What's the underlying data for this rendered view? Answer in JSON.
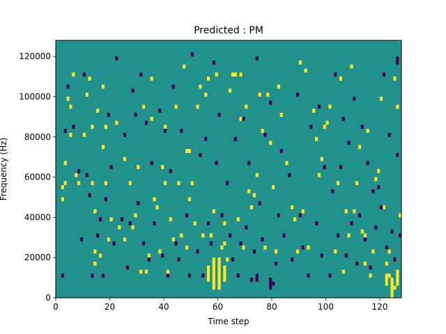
{
  "chart_data": {
    "type": "heatmap",
    "title": "Predicted : PM",
    "xlabel": "Time step",
    "ylabel": "Frequency (Hz)",
    "xlim": [
      0,
      128
    ],
    "ylim": [
      0,
      128000
    ],
    "x_ticks": [
      0,
      20,
      40,
      60,
      80,
      100,
      120
    ],
    "y_ticks": [
      0,
      20000,
      40000,
      60000,
      80000,
      100000,
      120000
    ],
    "n_time_steps": 128,
    "n_freq_bins": 64,
    "bin_height_hz": 2000,
    "background_value": 0,
    "value_levels": {
      "low": -1,
      "mid": 0,
      "high": 1
    },
    "colormap": [
      "#440154",
      "#21918c",
      "#fde725"
    ],
    "cells": [
      [
        2,
        48000,
        50000,
        1
      ],
      [
        2,
        54000,
        56000,
        1
      ],
      [
        3,
        56000,
        58000,
        1
      ],
      [
        3,
        66000,
        68000,
        1
      ],
      [
        4,
        98000,
        100000,
        1
      ],
      [
        5,
        80000,
        82000,
        1
      ],
      [
        5,
        94000,
        96000,
        1
      ],
      [
        6,
        110000,
        112000,
        1
      ],
      [
        7,
        60000,
        62000,
        1
      ],
      [
        8,
        56000,
        58000,
        1
      ],
      [
        10,
        80000,
        82000,
        1
      ],
      [
        11,
        100000,
        102000,
        1
      ],
      [
        12,
        108000,
        110000,
        1
      ],
      [
        13,
        56000,
        58000,
        1
      ],
      [
        13,
        84000,
        86000,
        1
      ],
      [
        14,
        16000,
        18000,
        1
      ],
      [
        14,
        22000,
        24000,
        1
      ],
      [
        14,
        42000,
        44000,
        1
      ],
      [
        15,
        92000,
        94000,
        1
      ],
      [
        16,
        20000,
        22000,
        1
      ],
      [
        17,
        74000,
        76000,
        1
      ],
      [
        17,
        104000,
        106000,
        1
      ],
      [
        18,
        56000,
        58000,
        1
      ],
      [
        18,
        84000,
        86000,
        1
      ],
      [
        19,
        28000,
        30000,
        1
      ],
      [
        20,
        38000,
        40000,
        1
      ],
      [
        22,
        86000,
        88000,
        1
      ],
      [
        23,
        34000,
        36000,
        1
      ],
      [
        25,
        28000,
        30000,
        1
      ],
      [
        25,
        68000,
        70000,
        1
      ],
      [
        27,
        56000,
        58000,
        1
      ],
      [
        28,
        34000,
        36000,
        1
      ],
      [
        29,
        40000,
        42000,
        1
      ],
      [
        30,
        64000,
        66000,
        1
      ],
      [
        31,
        12000,
        14000,
        1
      ],
      [
        32,
        94000,
        96000,
        1
      ],
      [
        33,
        12000,
        14000,
        1
      ],
      [
        34,
        20000,
        22000,
        1
      ],
      [
        35,
        88000,
        90000,
        1
      ],
      [
        35,
        108000,
        110000,
        1
      ],
      [
        36,
        48000,
        50000,
        1
      ],
      [
        37,
        44000,
        46000,
        1
      ],
      [
        38,
        22000,
        24000,
        1
      ],
      [
        39,
        64000,
        66000,
        1
      ],
      [
        40,
        56000,
        58000,
        1
      ],
      [
        40,
        84000,
        86000,
        1
      ],
      [
        41,
        12000,
        14000,
        1
      ],
      [
        42,
        38000,
        40000,
        1
      ],
      [
        43,
        28000,
        30000,
        1
      ],
      [
        44,
        94000,
        96000,
        1
      ],
      [
        45,
        56000,
        58000,
        1
      ],
      [
        46,
        30000,
        32000,
        1
      ],
      [
        47,
        114000,
        116000,
        1
      ],
      [
        48,
        24000,
        26000,
        1
      ],
      [
        48,
        72000,
        74000,
        1
      ],
      [
        49,
        48000,
        50000,
        1
      ],
      [
        49,
        72000,
        74000,
        1
      ],
      [
        50,
        56000,
        58000,
        1
      ],
      [
        51,
        36000,
        38000,
        1
      ],
      [
        52,
        94000,
        96000,
        1
      ],
      [
        53,
        104000,
        106000,
        1
      ],
      [
        54,
        30000,
        32000,
        1
      ],
      [
        55,
        100000,
        102000,
        1
      ],
      [
        56,
        108000,
        110000,
        1
      ],
      [
        57,
        30000,
        32000,
        1
      ],
      [
        58,
        42000,
        44000,
        1
      ],
      [
        59,
        110000,
        112000,
        1
      ],
      [
        60,
        12000,
        14000,
        1
      ],
      [
        60,
        18000,
        20000,
        1
      ],
      [
        61,
        24000,
        26000,
        1
      ],
      [
        62,
        26000,
        28000,
        1
      ],
      [
        62,
        36000,
        38000,
        1
      ],
      [
        63,
        18000,
        20000,
        1
      ],
      [
        64,
        102000,
        104000,
        1
      ],
      [
        65,
        110000,
        112000,
        1
      ],
      [
        66,
        110000,
        112000,
        1
      ],
      [
        67,
        38000,
        40000,
        1
      ],
      [
        68,
        88000,
        90000,
        1
      ],
      [
        68,
        110000,
        112000,
        1
      ],
      [
        69,
        24000,
        26000,
        1
      ],
      [
        70,
        94000,
        96000,
        1
      ],
      [
        71,
        52000,
        54000,
        1
      ],
      [
        72,
        44000,
        46000,
        1
      ],
      [
        73,
        50000,
        52000,
        1
      ],
      [
        74,
        60000,
        62000,
        1
      ],
      [
        75,
        100000,
        102000,
        1
      ],
      [
        76,
        82000,
        84000,
        1
      ],
      [
        77,
        24000,
        26000,
        1
      ],
      [
        78,
        100000,
        102000,
        1
      ],
      [
        79,
        76000,
        78000,
        1
      ],
      [
        80,
        54000,
        56000,
        1
      ],
      [
        81,
        22000,
        24000,
        1
      ],
      [
        82,
        104000,
        106000,
        1
      ],
      [
        83,
        90000,
        92000,
        1
      ],
      [
        85,
        66000,
        68000,
        1
      ],
      [
        87,
        44000,
        46000,
        1
      ],
      [
        88,
        38000,
        40000,
        1
      ],
      [
        89,
        22000,
        24000,
        1
      ],
      [
        90,
        116000,
        118000,
        1
      ],
      [
        91,
        42000,
        44000,
        1
      ],
      [
        92,
        112000,
        114000,
        1
      ],
      [
        93,
        24000,
        26000,
        1
      ],
      [
        95,
        92000,
        94000,
        1
      ],
      [
        96,
        78000,
        80000,
        1
      ],
      [
        97,
        60000,
        62000,
        1
      ],
      [
        98,
        68000,
        70000,
        1
      ],
      [
        99,
        84000,
        86000,
        1
      ],
      [
        100,
        86000,
        88000,
        1
      ],
      [
        101,
        94000,
        96000,
        1
      ],
      [
        103,
        22000,
        24000,
        1
      ],
      [
        104,
        56000,
        58000,
        1
      ],
      [
        105,
        108000,
        110000,
        1
      ],
      [
        106,
        12000,
        14000,
        1
      ],
      [
        107,
        42000,
        44000,
        1
      ],
      [
        108,
        30000,
        32000,
        1
      ],
      [
        109,
        114000,
        116000,
        1
      ],
      [
        110,
        42000,
        44000,
        1
      ],
      [
        111,
        56000,
        58000,
        1
      ],
      [
        112,
        74000,
        76000,
        1
      ],
      [
        113,
        32000,
        34000,
        1
      ],
      [
        114,
        16000,
        18000,
        1
      ],
      [
        114,
        30000,
        32000,
        1
      ],
      [
        115,
        82000,
        84000,
        1
      ],
      [
        116,
        10000,
        12000,
        1
      ],
      [
        117,
        22000,
        24000,
        1
      ],
      [
        118,
        58000,
        60000,
        1
      ],
      [
        119,
        62000,
        64000,
        1
      ],
      [
        120,
        98000,
        100000,
        1
      ],
      [
        121,
        44000,
        46000,
        1
      ],
      [
        122,
        16000,
        18000,
        1
      ],
      [
        123,
        10000,
        12000,
        1
      ],
      [
        123,
        22000,
        24000,
        1
      ],
      [
        125,
        4000,
        6000,
        1
      ],
      [
        125,
        108000,
        110000,
        1
      ],
      [
        126,
        94000,
        96000,
        1
      ],
      [
        127,
        40000,
        42000,
        1
      ],
      [
        56,
        8000,
        16000,
        1
      ],
      [
        58,
        4000,
        20000,
        1
      ],
      [
        60,
        4000,
        20000,
        1
      ],
      [
        62,
        8000,
        16000,
        1
      ],
      [
        122,
        6000,
        12000,
        1
      ],
      [
        124,
        0,
        10000,
        1
      ],
      [
        126,
        6000,
        14000,
        1
      ],
      [
        2,
        10000,
        12000,
        -1
      ],
      [
        3,
        82000,
        84000,
        -1
      ],
      [
        4,
        104000,
        106000,
        -1
      ],
      [
        6,
        84000,
        86000,
        -1
      ],
      [
        8,
        62000,
        64000,
        -1
      ],
      [
        9,
        28000,
        30000,
        -1
      ],
      [
        10,
        110000,
        112000,
        -1
      ],
      [
        11,
        60000,
        62000,
        -1
      ],
      [
        12,
        50000,
        52000,
        -1
      ],
      [
        13,
        10000,
        12000,
        -1
      ],
      [
        15,
        30000,
        32000,
        -1
      ],
      [
        16,
        38000,
        40000,
        -1
      ],
      [
        17,
        10000,
        12000,
        -1
      ],
      [
        18,
        48000,
        50000,
        -1
      ],
      [
        19,
        90000,
        92000,
        -1
      ],
      [
        20,
        64000,
        66000,
        -1
      ],
      [
        21,
        26000,
        28000,
        -1
      ],
      [
        22,
        118000,
        120000,
        -1
      ],
      [
        24,
        38000,
        40000,
        -1
      ],
      [
        25,
        80000,
        82000,
        -1
      ],
      [
        26,
        14000,
        16000,
        -1
      ],
      [
        27,
        36000,
        38000,
        -1
      ],
      [
        28,
        102000,
        104000,
        -1
      ],
      [
        29,
        90000,
        92000,
        -1
      ],
      [
        30,
        46000,
        48000,
        -1
      ],
      [
        31,
        110000,
        112000,
        -1
      ],
      [
        32,
        26000,
        28000,
        -1
      ],
      [
        33,
        86000,
        88000,
        -1
      ],
      [
        34,
        18000,
        20000,
        -1
      ],
      [
        35,
        66000,
        68000,
        -1
      ],
      [
        36,
        36000,
        38000,
        -1
      ],
      [
        38,
        92000,
        94000,
        -1
      ],
      [
        39,
        20000,
        22000,
        -1
      ],
      [
        40,
        82000,
        84000,
        -1
      ],
      [
        41,
        10000,
        12000,
        -1
      ],
      [
        42,
        62000,
        64000,
        -1
      ],
      [
        43,
        104000,
        106000,
        -1
      ],
      [
        44,
        26000,
        28000,
        -1
      ],
      [
        45,
        18000,
        20000,
        -1
      ],
      [
        46,
        82000,
        84000,
        -1
      ],
      [
        48,
        40000,
        42000,
        -1
      ],
      [
        49,
        10000,
        12000,
        -1
      ],
      [
        50,
        120000,
        122000,
        -1
      ],
      [
        52,
        22000,
        24000,
        -1
      ],
      [
        53,
        70000,
        72000,
        -1
      ],
      [
        54,
        10000,
        12000,
        -1
      ],
      [
        55,
        78000,
        80000,
        -1
      ],
      [
        56,
        36000,
        38000,
        -1
      ],
      [
        57,
        26000,
        28000,
        -1
      ],
      [
        58,
        116000,
        118000,
        -1
      ],
      [
        59,
        66000,
        68000,
        -1
      ],
      [
        60,
        90000,
        92000,
        -1
      ],
      [
        61,
        40000,
        42000,
        -1
      ],
      [
        63,
        56000,
        58000,
        -1
      ],
      [
        64,
        30000,
        32000,
        -1
      ],
      [
        65,
        18000,
        20000,
        -1
      ],
      [
        66,
        78000,
        80000,
        -1
      ],
      [
        67,
        10000,
        12000,
        -1
      ],
      [
        68,
        26000,
        28000,
        -1
      ],
      [
        69,
        88000,
        90000,
        -1
      ],
      [
        70,
        34000,
        36000,
        -1
      ],
      [
        71,
        66000,
        68000,
        -1
      ],
      [
        72,
        8000,
        10000,
        -1
      ],
      [
        73,
        22000,
        24000,
        -1
      ],
      [
        74,
        118000,
        120000,
        -1
      ],
      [
        75,
        46000,
        48000,
        -1
      ],
      [
        76,
        28000,
        30000,
        -1
      ],
      [
        77,
        80000,
        82000,
        -1
      ],
      [
        79,
        96000,
        98000,
        -1
      ],
      [
        80,
        6000,
        8000,
        -1
      ],
      [
        81,
        16000,
        18000,
        -1
      ],
      [
        82,
        40000,
        42000,
        -1
      ],
      [
        83,
        72000,
        74000,
        -1
      ],
      [
        84,
        30000,
        32000,
        -1
      ],
      [
        86,
        60000,
        62000,
        -1
      ],
      [
        87,
        18000,
        20000,
        -1
      ],
      [
        89,
        100000,
        102000,
        -1
      ],
      [
        90,
        40000,
        42000,
        -1
      ],
      [
        91,
        24000,
        26000,
        -1
      ],
      [
        93,
        10000,
        12000,
        -1
      ],
      [
        94,
        84000,
        86000,
        -1
      ],
      [
        96,
        36000,
        38000,
        -1
      ],
      [
        97,
        94000,
        96000,
        -1
      ],
      [
        98,
        20000,
        22000,
        -1
      ],
      [
        99,
        64000,
        66000,
        -1
      ],
      [
        101,
        10000,
        12000,
        -1
      ],
      [
        102,
        52000,
        54000,
        -1
      ],
      [
        103,
        110000,
        112000,
        -1
      ],
      [
        104,
        30000,
        32000,
        -1
      ],
      [
        105,
        64000,
        66000,
        -1
      ],
      [
        106,
        88000,
        90000,
        -1
      ],
      [
        107,
        20000,
        22000,
        -1
      ],
      [
        108,
        76000,
        78000,
        -1
      ],
      [
        109,
        36000,
        38000,
        -1
      ],
      [
        110,
        98000,
        100000,
        -1
      ],
      [
        111,
        16000,
        18000,
        -1
      ],
      [
        112,
        40000,
        42000,
        -1
      ],
      [
        113,
        84000,
        86000,
        -1
      ],
      [
        114,
        28000,
        30000,
        -1
      ],
      [
        115,
        66000,
        68000,
        -1
      ],
      [
        116,
        14000,
        16000,
        -1
      ],
      [
        117,
        52000,
        54000,
        -1
      ],
      [
        118,
        34000,
        36000,
        -1
      ],
      [
        119,
        54000,
        56000,
        -1
      ],
      [
        120,
        44000,
        46000,
        -1
      ],
      [
        121,
        110000,
        112000,
        -1
      ],
      [
        122,
        24000,
        26000,
        -1
      ],
      [
        123,
        80000,
        82000,
        -1
      ],
      [
        124,
        32000,
        34000,
        -1
      ],
      [
        125,
        18000,
        20000,
        -1
      ],
      [
        126,
        70000,
        72000,
        -1
      ],
      [
        127,
        30000,
        32000,
        -1
      ],
      [
        126,
        116000,
        120000,
        -1
      ],
      [
        74,
        8000,
        12000,
        -1
      ],
      [
        79,
        4000,
        10000,
        -1
      ]
    ]
  }
}
